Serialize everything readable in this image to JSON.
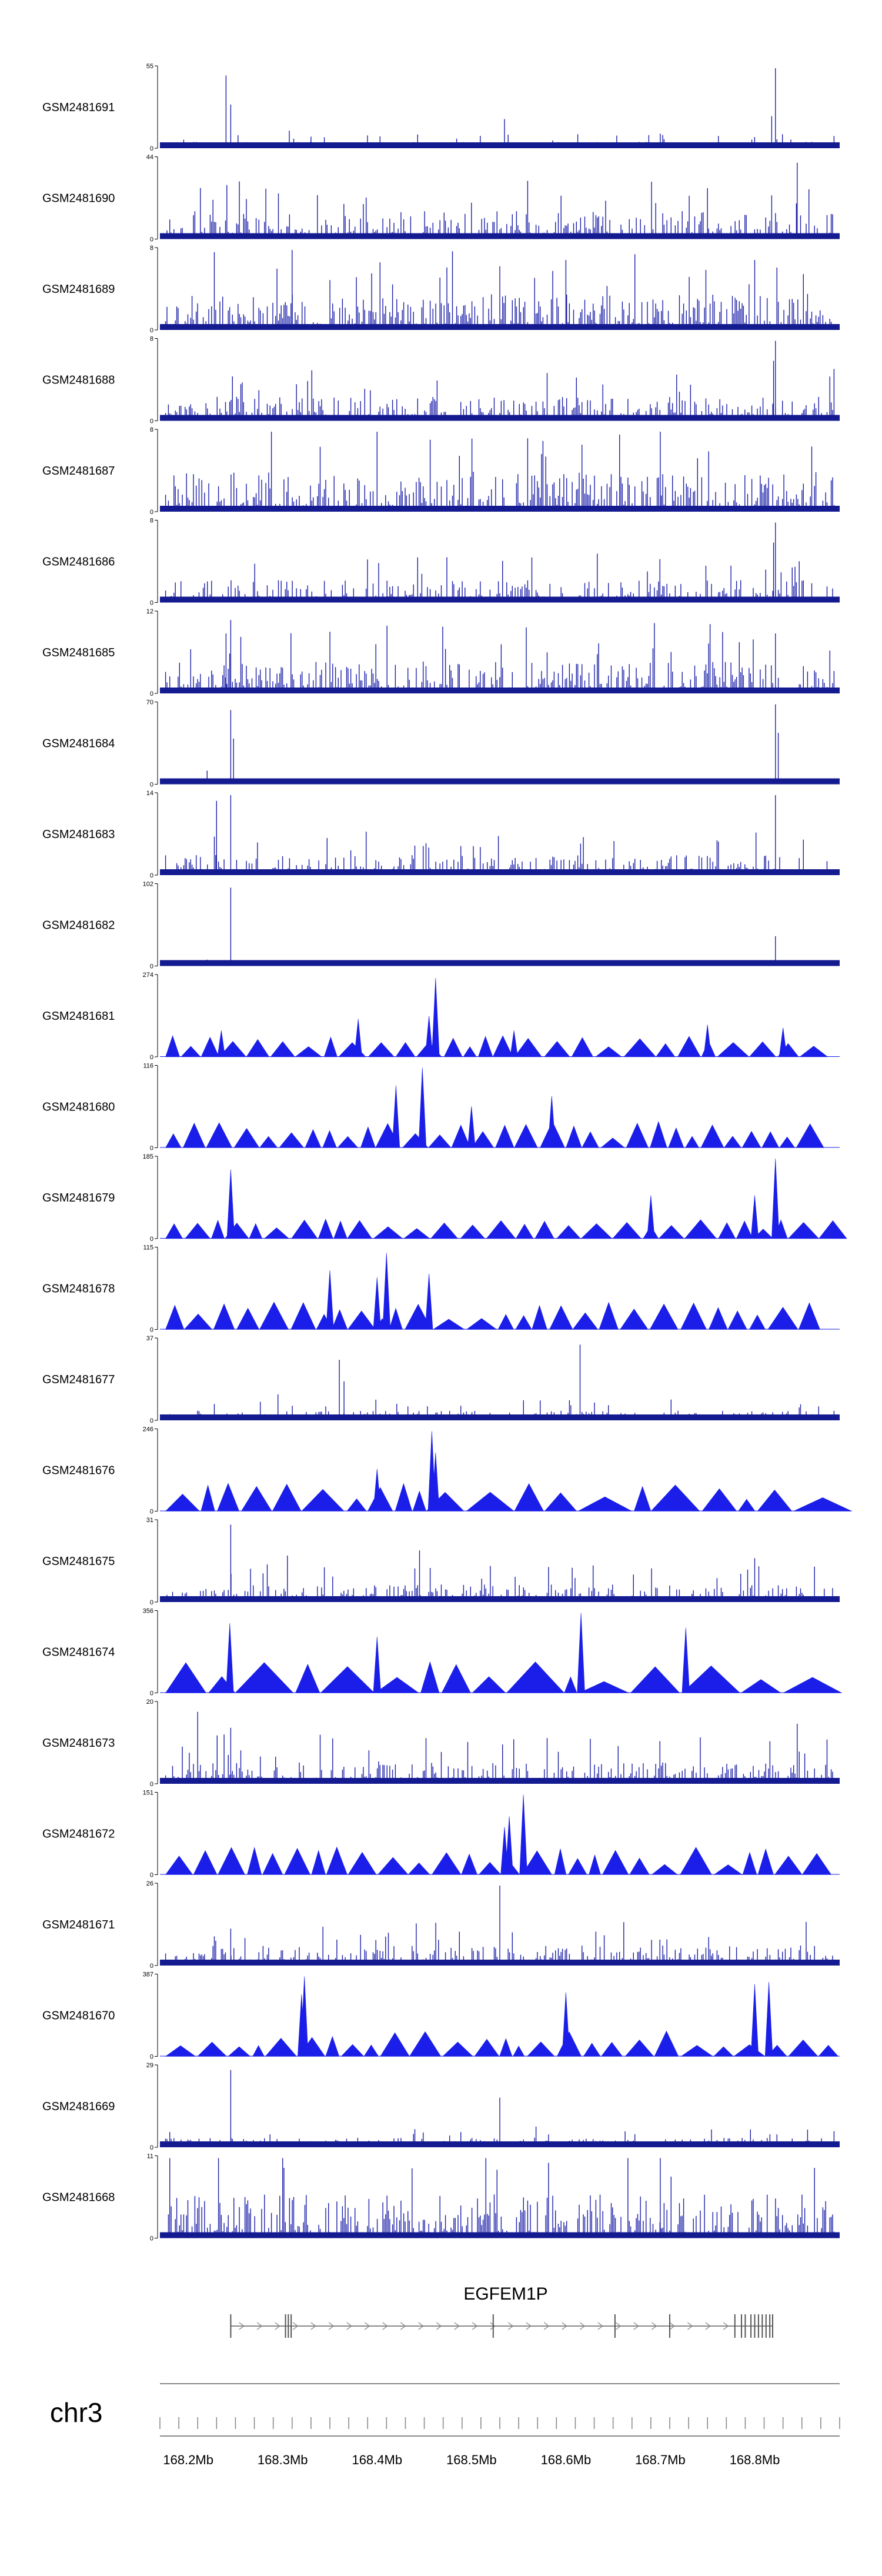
{
  "chart_data": {
    "type": "area",
    "chromosome": "chr3",
    "genome_axis": {
      "unit": "Mb",
      "range": [
        168.17,
        168.89
      ],
      "tick_labels": [
        "168.2Mb",
        "168.3Mb",
        "168.4Mb",
        "168.5Mb",
        "168.6Mb",
        "168.7Mb",
        "168.8Mb"
      ],
      "tick_values": [
        168.2,
        168.3,
        168.4,
        168.5,
        168.6,
        168.7,
        168.8
      ]
    },
    "gene": {
      "name": "EGFEM1P",
      "start": 168.245,
      "end": 168.819,
      "strand": "+",
      "exons": [
        168.245,
        168.303,
        168.306,
        168.309,
        168.523,
        168.652,
        168.71,
        168.779,
        168.786,
        168.79,
        168.796,
        168.8,
        168.804,
        168.808,
        168.812,
        168.816,
        168.819
      ]
    },
    "tracks": [
      {
        "name": "GSM2481691",
        "ymax": 55,
        "style": "dense",
        "noise": 0.08,
        "peaks": [
          [
            168.24,
            50
          ],
          [
            168.245,
            30
          ],
          [
            168.307,
            12
          ],
          [
            168.33,
            8
          ],
          [
            168.535,
            20
          ],
          [
            168.7,
            10
          ],
          [
            168.822,
            55
          ],
          [
            168.818,
            22
          ]
        ]
      },
      {
        "name": "GSM2481690",
        "ymax": 44,
        "style": "dense",
        "noise": 0.35,
        "peaks": [
          [
            168.75,
            28
          ],
          [
            168.845,
            42
          ],
          [
            168.818,
            24
          ],
          [
            168.5,
            20
          ]
        ]
      },
      {
        "name": "GSM2481689",
        "ymax": 8,
        "style": "dense",
        "noise": 0.45,
        "peaks": [
          [
            168.31,
            8
          ],
          [
            168.6,
            7
          ],
          [
            168.8,
            7
          ]
        ]
      },
      {
        "name": "GSM2481688",
        "ymax": 8,
        "style": "dense",
        "noise": 0.3,
        "peaks": [
          [
            168.822,
            8
          ],
          [
            168.82,
            6
          ]
        ]
      },
      {
        "name": "GSM2481687",
        "ymax": 8,
        "style": "dense",
        "noise": 0.5,
        "peaks": [
          [
            168.4,
            8
          ],
          [
            168.7,
            8
          ]
        ]
      },
      {
        "name": "GSM2481686",
        "ymax": 8,
        "style": "dense",
        "noise": 0.28,
        "peaks": [
          [
            168.822,
            8
          ],
          [
            168.82,
            6
          ]
        ]
      },
      {
        "name": "GSM2481685",
        "ymax": 12,
        "style": "dense",
        "noise": 0.4,
        "peaks": [
          [
            168.245,
            11
          ],
          [
            168.24,
            9
          ],
          [
            168.822,
            9
          ]
        ]
      },
      {
        "name": "GSM2481684",
        "ymax": 70,
        "style": "dense",
        "noise": 0.02,
        "peaks": [
          [
            168.245,
            65
          ],
          [
            168.248,
            40
          ],
          [
            168.22,
            12
          ],
          [
            168.822,
            70
          ],
          [
            168.825,
            45
          ]
        ]
      },
      {
        "name": "GSM2481683",
        "ymax": 14,
        "style": "dense",
        "noise": 0.25,
        "peaks": [
          [
            168.23,
            13
          ],
          [
            168.245,
            14
          ],
          [
            168.822,
            14
          ]
        ]
      },
      {
        "name": "GSM2481682",
        "ymax": 102,
        "style": "dense",
        "noise": 0.01,
        "peaks": [
          [
            168.245,
            100
          ],
          [
            168.22,
            8
          ],
          [
            168.822,
            38
          ]
        ]
      },
      {
        "name": "GSM2481681",
        "ymax": 274,
        "style": "sparse",
        "noise": 0.3,
        "peaks": [
          [
            168.38,
            130
          ],
          [
            168.455,
            140
          ],
          [
            168.462,
            270
          ],
          [
            168.545,
            90
          ],
          [
            168.75,
            110
          ],
          [
            168.235,
            90
          ],
          [
            168.83,
            100
          ]
        ]
      },
      {
        "name": "GSM2481680",
        "ymax": 116,
        "style": "sparse",
        "noise": 0.45,
        "peaks": [
          [
            168.448,
            116
          ],
          [
            168.42,
            90
          ],
          [
            168.5,
            60
          ],
          [
            168.585,
            75
          ]
        ]
      },
      {
        "name": "GSM2481679",
        "ymax": 185,
        "style": "sparse",
        "noise": 0.25,
        "peaks": [
          [
            168.245,
            160
          ],
          [
            168.822,
            185
          ],
          [
            168.8,
            100
          ],
          [
            168.69,
            100
          ]
        ]
      },
      {
        "name": "GSM2481678",
        "ymax": 115,
        "style": "sparse",
        "noise": 0.45,
        "peaks": [
          [
            168.41,
            110
          ],
          [
            168.4,
            75
          ],
          [
            168.35,
            85
          ],
          [
            168.455,
            80
          ]
        ]
      },
      {
        "name": "GSM2481677",
        "ymax": 37,
        "style": "dense",
        "noise": 0.12,
        "peaks": [
          [
            168.36,
            28
          ],
          [
            168.365,
            18
          ],
          [
            168.615,
            35
          ],
          [
            168.295,
            12
          ]
        ]
      },
      {
        "name": "GSM2481676",
        "ymax": 246,
        "style": "sparse",
        "noise": 0.5,
        "peaks": [
          [
            168.458,
            246
          ],
          [
            168.462,
            180
          ],
          [
            168.4,
            130
          ]
        ]
      },
      {
        "name": "GSM2481675",
        "ymax": 31,
        "style": "dense",
        "noise": 0.22,
        "peaks": [
          [
            168.245,
            30
          ],
          [
            168.305,
            18
          ],
          [
            168.445,
            20
          ],
          [
            168.52,
            14
          ],
          [
            168.8,
            17
          ]
        ]
      },
      {
        "name": "GSM2481674",
        "ymax": 356,
        "style": "sparse",
        "noise": 0.55,
        "peaks": [
          [
            168.616,
            356
          ],
          [
            168.244,
            310
          ],
          [
            168.727,
            290
          ],
          [
            168.4,
            250
          ]
        ]
      },
      {
        "name": "GSM2481673",
        "ymax": 20,
        "style": "dense",
        "noise": 0.28,
        "peaks": [
          [
            168.21,
            18
          ],
          [
            168.245,
            14
          ],
          [
            168.845,
            15
          ]
        ]
      },
      {
        "name": "GSM2481672",
        "ymax": 151,
        "style": "sparse",
        "noise": 0.45,
        "peaks": [
          [
            168.555,
            151
          ],
          [
            168.54,
            110
          ],
          [
            168.535,
            90
          ]
        ]
      },
      {
        "name": "GSM2481671",
        "ymax": 26,
        "style": "dense",
        "noise": 0.25,
        "peaks": [
          [
            168.53,
            26
          ],
          [
            168.245,
            12
          ]
        ]
      },
      {
        "name": "GSM2481670",
        "ymax": 387,
        "style": "sparse",
        "noise": 0.4,
        "peaks": [
          [
            168.323,
            387
          ],
          [
            168.32,
            300
          ],
          [
            168.6,
            310
          ],
          [
            168.8,
            350
          ],
          [
            168.815,
            360
          ]
        ]
      },
      {
        "name": "GSM2481669",
        "ymax": 29,
        "style": "dense",
        "noise": 0.12,
        "peaks": [
          [
            168.245,
            28
          ],
          [
            168.53,
            18
          ]
        ]
      },
      {
        "name": "GSM2481668",
        "ymax": 11,
        "style": "dense",
        "noise": 0.55,
        "peaks": [
          [
            168.3,
            11
          ],
          [
            168.7,
            11
          ]
        ]
      }
    ]
  }
}
